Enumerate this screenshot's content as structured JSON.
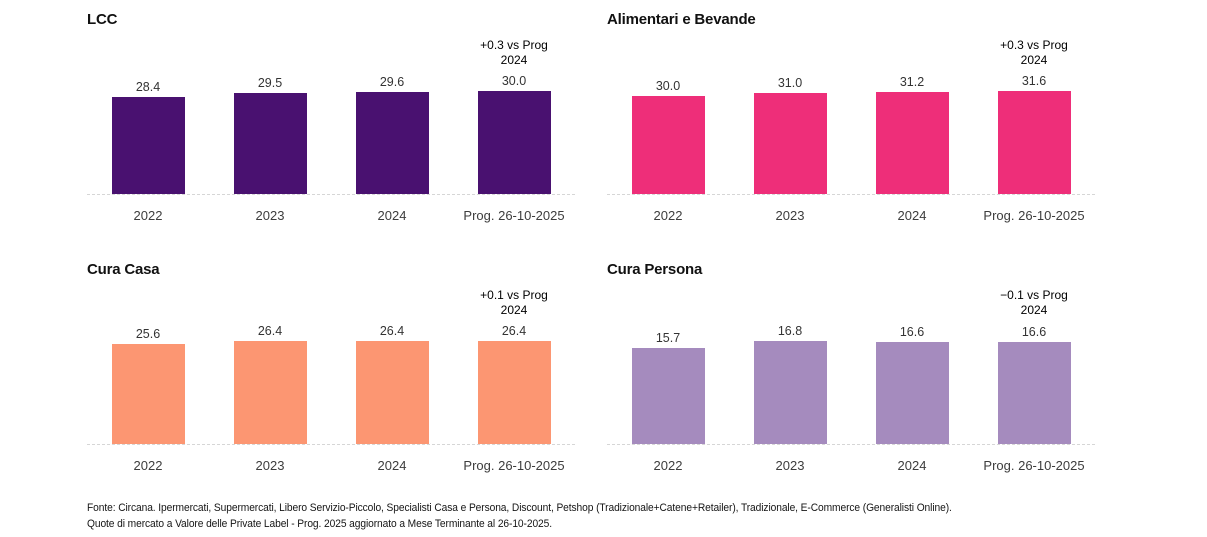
{
  "chart_data": [
    {
      "type": "bar",
      "title": "LCC",
      "categories": [
        "2022",
        "2023",
        "2024",
        "Prog. 26-10-2025"
      ],
      "values": [
        28.4,
        29.5,
        29.6,
        30.0
      ],
      "value_labels": [
        "28.4",
        "29.5",
        "29.6",
        "30.0"
      ],
      "annotation_line1": "+0.3 vs Prog",
      "annotation_line2": "2024",
      "bar_color": "#491170",
      "xlabel": "",
      "ylabel": "",
      "grid": false,
      "legend": false
    },
    {
      "type": "bar",
      "title": "Alimentari e Bevande",
      "categories": [
        "2022",
        "2023",
        "2024",
        "Prog. 26-10-2025"
      ],
      "values": [
        30.0,
        31.0,
        31.2,
        31.6
      ],
      "value_labels": [
        "30.0",
        "31.0",
        "31.2",
        "31.6"
      ],
      "annotation_line1": "+0.3 vs Prog",
      "annotation_line2": "2024",
      "bar_color": "#EE2E79",
      "xlabel": "",
      "ylabel": "",
      "grid": false,
      "legend": false
    },
    {
      "type": "bar",
      "title": "Cura Casa",
      "categories": [
        "2022",
        "2023",
        "2024",
        "Prog. 26-10-2025"
      ],
      "values": [
        25.6,
        26.4,
        26.4,
        26.4
      ],
      "value_labels": [
        "25.6",
        "26.4",
        "26.4",
        "26.4"
      ],
      "annotation_line1": "+0.1 vs Prog",
      "annotation_line2": "2024",
      "bar_color": "#FC9672",
      "xlabel": "",
      "ylabel": "",
      "grid": false,
      "legend": false
    },
    {
      "type": "bar",
      "title": "Cura Persona",
      "categories": [
        "2022",
        "2023",
        "2024",
        "Prog. 26-10-2025"
      ],
      "values": [
        15.7,
        16.8,
        16.6,
        16.6
      ],
      "value_labels": [
        "15.7",
        "16.8",
        "16.6",
        "16.6"
      ],
      "annotation_line1": "−0.1 vs Prog",
      "annotation_line2": "2024",
      "bar_color": "#A58BBE",
      "xlabel": "",
      "ylabel": "",
      "grid": false,
      "legend": false
    }
  ],
  "footer": {
    "line1": "Fonte: Circana. Ipermercati, Supermercati, Libero Servizio-Piccolo, Specialisti Casa e Persona, Discount, Petshop (Tradizionale+Catene+Retailer), Tradizionale, E-Commerce (Generalisti Online).",
    "line2": "Quote di mercato a Valore delle Private Label - Prog. 2025 aggiornato a Mese Terminante al 26-10-2025."
  }
}
